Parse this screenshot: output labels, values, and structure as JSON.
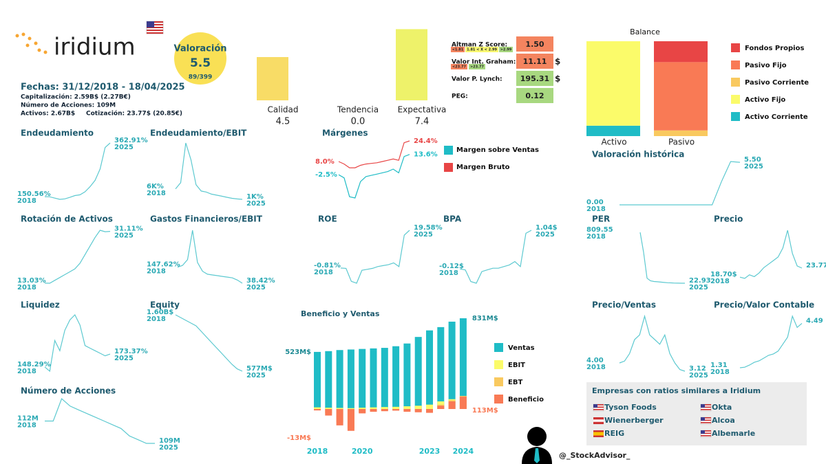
{
  "header": {
    "logo": "iridium",
    "valuation_title": "Valoración",
    "valuation": "5.5",
    "rank": "89/399",
    "dates": "Fechas: 31/12/2018 - 18/04/2025",
    "cap": "Capitalización: 2.59B$ (2.27B€)",
    "shares": "Número de Acciones: 109M",
    "assets": "Activos: 2.67B$",
    "price": "Cotización: 23.77$ (20.85€)"
  },
  "ratios": {
    "rows": [
      {
        "label": "Altman Z Score:",
        "value": "1.50",
        "color": "#f4845f"
      },
      {
        "label": "Valor Int. Graham:",
        "value": "11.11",
        "unit": "$",
        "color": "#f4845f"
      },
      {
        "label": "Valor P. Lynch:",
        "value": "195.31",
        "unit": "$",
        "color": "#a8d880"
      },
      {
        "label": "PEG:",
        "value": "0.12",
        "color": "#a8d880"
      }
    ],
    "altman_legend": [
      "<1.81",
      "1.81 < X < 2.99",
      ">2.99"
    ],
    "graham_legend": [
      "<23.77",
      ">23.77"
    ]
  },
  "similar": {
    "title": "Empresas con ratios similares a Iridium",
    "companies": [
      "Tyson Foods",
      "Okta",
      "Wienerberger",
      "Alcoa",
      "REIG",
      "Albemarle"
    ]
  },
  "footer": "@_StockAdvisor_",
  "chart_data": [
    {
      "type": "score",
      "categories": [
        "Calidad",
        "Tendencia",
        "Expectativa"
      ],
      "values": [
        4.5,
        0.0,
        7.4
      ],
      "value_labels": [
        "4.5",
        "0.0",
        "7.4"
      ],
      "colors": [
        "#f8dc66",
        "#f8dc66",
        "#eef26a"
      ]
    },
    {
      "type": "stack",
      "title": "Balance",
      "categories": [
        "Activo",
        "Pasivo"
      ],
      "series": [
        {
          "name": "Fondos Propios",
          "color": "#e84545",
          "values": [
            0,
            22
          ]
        },
        {
          "name": "Pasivo Fijo",
          "color": "#f97a55",
          "values": [
            0,
            72
          ]
        },
        {
          "name": "Pasivo Corriente",
          "color": "#f9c95f",
          "values": [
            0,
            6
          ]
        },
        {
          "name": "Activo Fijo",
          "color": "#fbfb6a",
          "values": [
            89,
            0
          ]
        },
        {
          "name": "Activo Corriente",
          "color": "#1fbcc6",
          "values": [
            11,
            0
          ]
        }
      ]
    },
    {
      "type": "overlap",
      "title": "Beneficio y Ventas",
      "categories": [
        "2018",
        null,
        null,
        null,
        "2020",
        null,
        null,
        null,
        null,
        null,
        "2023",
        null,
        null,
        "2024"
      ],
      "series": [
        {
          "name": "Ventas",
          "color": "#1fbcc6",
          "values": [
            523000000,
            530000000,
            540000000,
            545000000,
            550000000,
            555000000,
            560000000,
            575000000,
            600000000,
            660000000,
            720000000,
            750000000,
            800000000,
            831000000
          ],
          "value_labels": [
            "523M$",
            null,
            null,
            null,
            null,
            null,
            null,
            null,
            null,
            null,
            null,
            null,
            null,
            "831M$"
          ]
        },
        {
          "name": "EBIT",
          "color": "#fbfb6a",
          "values": [
            15000000,
            12000000,
            10000000,
            8000000,
            12000000,
            15000000,
            18000000,
            20000000,
            25000000,
            30000000,
            40000000,
            70000000,
            90000000,
            110000000
          ]
        },
        {
          "name": "EBT",
          "color": "#f9c95f",
          "values": [
            -5000000,
            -40000000,
            -120000000,
            -180000000,
            -30000000,
            -15000000,
            -10000000,
            -10000000,
            -15000000,
            -20000000,
            -25000000,
            40000000,
            80000000,
            120000000
          ]
        },
        {
          "name": "Beneficio",
          "color": "#f97a55",
          "values": [
            -13000000,
            -60000000,
            -150000000,
            -200000000,
            -40000000,
            -25000000,
            -20000000,
            -15000000,
            -25000000,
            -30000000,
            -35000000,
            30000000,
            70000000,
            113000000
          ],
          "value_labels": [
            "-13M$",
            null,
            null,
            null,
            null,
            null,
            null,
            null,
            null,
            null,
            null,
            null,
            null,
            "113M$"
          ]
        }
      ]
    },
    {
      "type": "line",
      "title": "Endeudamiento",
      "color": "#5cc9d0",
      "categories": [
        "2018",
        null,
        null,
        null,
        null,
        null,
        null,
        null,
        null,
        null,
        null,
        null,
        null,
        "2025"
      ],
      "values": [
        150.56,
        150,
        145,
        140,
        142,
        148,
        155,
        158,
        170,
        190,
        215,
        260,
        345,
        362.91
      ],
      "value_labels": [
        "150.56%",
        null,
        null,
        null,
        null,
        null,
        null,
        null,
        null,
        null,
        null,
        null,
        null,
        "362.91%"
      ]
    },
    {
      "type": "line",
      "title": "Endeudamiento/EBIT",
      "color": "#5cc9d0",
      "categories": [
        "2018",
        null,
        null,
        null,
        null,
        null,
        null,
        null,
        null,
        null,
        null,
        null,
        null,
        "2025"
      ],
      "values": [
        6000,
        9000,
        28000,
        20000,
        8000,
        5000,
        4500,
        3500,
        3000,
        2500,
        2000,
        1500,
        1200,
        1000
      ],
      "value_labels": [
        "6K%",
        null,
        null,
        null,
        null,
        null,
        null,
        null,
        null,
        null,
        null,
        null,
        null,
        "1K%"
      ]
    },
    {
      "type": "line",
      "title": "Márgenes",
      "categories": [
        null,
        null,
        null,
        null,
        null,
        null,
        null,
        null,
        null,
        null,
        null,
        null,
        null,
        null
      ],
      "series": [
        {
          "name": "Margen sobre Ventas",
          "color": "#1fbcc6",
          "values": [
            -2.5,
            -5,
            -20,
            -21,
            -8,
            -4,
            -3,
            -2,
            -1,
            0,
            2,
            -1,
            12,
            13.6
          ],
          "value_labels": [
            "-2.5%",
            null,
            null,
            null,
            null,
            null,
            null,
            null,
            null,
            null,
            null,
            null,
            null,
            "13.6%"
          ]
        },
        {
          "name": "Margen Bruto",
          "color": "#e84545",
          "values": [
            8.0,
            6,
            3,
            3,
            5,
            6,
            6.5,
            7,
            8,
            9,
            10,
            9,
            23,
            24.4
          ],
          "value_labels": [
            "8.0%",
            null,
            null,
            null,
            null,
            null,
            null,
            null,
            null,
            null,
            null,
            null,
            null,
            "24.4%"
          ]
        }
      ]
    },
    {
      "type": "line",
      "title": "Valoración histórica",
      "color": "#5cc9d0",
      "categories": [
        "2018",
        null,
        null,
        null,
        null,
        null,
        null,
        null,
        null,
        null,
        null,
        null,
        null,
        "2025"
      ],
      "values": [
        0.0,
        0,
        0,
        0,
        0,
        0,
        0,
        0,
        0,
        0,
        0,
        3,
        5.6,
        5.5
      ],
      "value_labels": [
        "0.00",
        null,
        null,
        null,
        null,
        null,
        null,
        null,
        null,
        null,
        null,
        null,
        null,
        "5.50"
      ]
    },
    {
      "type": "line",
      "title": "Rotación de Activos",
      "color": "#5cc9d0",
      "categories": [
        "2018",
        null,
        null,
        null,
        null,
        null,
        null,
        null,
        null,
        null,
        null,
        null,
        null,
        "2025"
      ],
      "values": [
        13.03,
        13,
        14,
        15,
        16,
        17,
        18,
        20,
        23,
        26,
        29,
        31.5,
        31,
        31.11
      ],
      "value_labels": [
        "13.03%",
        null,
        null,
        null,
        null,
        null,
        null,
        null,
        null,
        null,
        null,
        null,
        null,
        "31.11%"
      ]
    },
    {
      "type": "line",
      "title": "Gastos Financieros/EBIT",
      "color": "#5cc9d0",
      "categories": [
        "2018",
        null,
        null,
        null,
        null,
        null,
        null,
        null,
        null,
        null,
        null,
        null,
        null,
        "2025"
      ],
      "values": [
        147.62,
        160,
        200,
        400,
        180,
        120,
        100,
        95,
        90,
        85,
        80,
        75,
        60,
        38.42
      ],
      "value_labels": [
        "147.62%",
        null,
        null,
        null,
        null,
        null,
        null,
        null,
        null,
        null,
        null,
        null,
        null,
        "38.42%"
      ]
    },
    {
      "type": "line",
      "title": "ROE",
      "color": "#5cc9d0",
      "categories": [
        "2018",
        null,
        null,
        null,
        null,
        null,
        null,
        null,
        null,
        null,
        null,
        null,
        null,
        "2025"
      ],
      "values": [
        -0.81,
        -1,
        -8,
        -9,
        -2,
        -1.5,
        -1,
        0,
        0.5,
        1,
        2,
        0,
        17,
        19.58
      ],
      "value_labels": [
        "-0.81%",
        null,
        null,
        null,
        null,
        null,
        null,
        null,
        null,
        null,
        null,
        null,
        null,
        "19.58%"
      ]
    },
    {
      "type": "line",
      "title": "BPA",
      "color": "#5cc9d0",
      "categories": [
        "2018",
        null,
        null,
        null,
        null,
        null,
        null,
        null,
        null,
        null,
        null,
        null,
        null,
        "2025"
      ],
      "values": [
        -0.12,
        -0.15,
        -0.5,
        -0.55,
        -0.2,
        -0.15,
        -0.1,
        -0.1,
        -0.05,
        0,
        0.1,
        -0.05,
        0.95,
        1.04
      ],
      "value_labels": [
        "-0.12$",
        null,
        null,
        null,
        null,
        null,
        null,
        null,
        null,
        null,
        null,
        null,
        null,
        "1.04$"
      ]
    },
    {
      "type": "line",
      "title": "PER",
      "color": "#5cc9d0",
      "categories": [
        "2018",
        null,
        null,
        null,
        null,
        null,
        null,
        null,
        null,
        null,
        null,
        null,
        null,
        "2025"
      ],
      "values": [
        809.55,
        500,
        100,
        60,
        50,
        45,
        40,
        35,
        30,
        28,
        25,
        24,
        23,
        22.93
      ],
      "value_labels": [
        "809.55",
        null,
        null,
        null,
        null,
        null,
        null,
        null,
        null,
        null,
        null,
        null,
        null,
        "22.93"
      ]
    },
    {
      "type": "line",
      "title": "Precio",
      "color": "#5cc9d0",
      "categories": [
        "2018",
        null,
        null,
        null,
        null,
        null,
        null,
        null,
        null,
        null,
        null,
        null,
        null,
        null
      ],
      "values": [
        18.7,
        18,
        20,
        19,
        21,
        24,
        26,
        28,
        30,
        35,
        45,
        32,
        25,
        23.77
      ],
      "value_labels": [
        "18.70$",
        null,
        null,
        null,
        null,
        null,
        null,
        null,
        null,
        null,
        null,
        null,
        null,
        "23.77"
      ]
    },
    {
      "type": "line",
      "title": "Liquidez",
      "color": "#5cc9d0",
      "categories": [
        "2018",
        null,
        null,
        null,
        null,
        null,
        null,
        null,
        null,
        null,
        null,
        null,
        null,
        "2025"
      ],
      "values": [
        148.29,
        140,
        200,
        180,
        220,
        240,
        250,
        230,
        190,
        185,
        180,
        175,
        170,
        173.37
      ],
      "value_labels": [
        "148.29%",
        null,
        null,
        null,
        null,
        null,
        null,
        null,
        null,
        null,
        null,
        null,
        null,
        "173.37%"
      ]
    },
    {
      "type": "line",
      "title": "Equity",
      "color": "#5cc9d0",
      "categories": [
        "2018",
        null,
        null,
        null,
        null,
        null,
        null,
        null,
        null,
        null,
        null,
        null,
        null,
        "2025"
      ],
      "values": [
        1600000000,
        1550000000,
        1500000000,
        1450000000,
        1400000000,
        1300000000,
        1200000000,
        1100000000,
        1000000000,
        900000000,
        800000000,
        700000000,
        620000000,
        577000000
      ],
      "value_labels": [
        "1.60B$",
        null,
        null,
        null,
        null,
        null,
        null,
        null,
        null,
        null,
        null,
        null,
        null,
        "577M$"
      ]
    },
    {
      "type": "line",
      "title": "Precio/Ventas",
      "color": "#5cc9d0",
      "categories": [
        "2018",
        null,
        null,
        null,
        null,
        null,
        null,
        null,
        null,
        null,
        null,
        null,
        null,
        "2025"
      ],
      "values": [
        4.0,
        4.2,
        5,
        6.5,
        7,
        9,
        7,
        6.5,
        6,
        7,
        5,
        4,
        3.3,
        3.12
      ],
      "value_labels": [
        "4.00",
        null,
        null,
        null,
        null,
        null,
        null,
        null,
        null,
        null,
        null,
        null,
        null,
        "3.12"
      ]
    },
    {
      "type": "line",
      "title": "Precio/Valor Contable",
      "color": "#5cc9d0",
      "categories": [
        "2018",
        null,
        null,
        null,
        null,
        null,
        null,
        null,
        null,
        null,
        null,
        null,
        null,
        null
      ],
      "values": [
        1.31,
        1.35,
        1.5,
        1.7,
        1.8,
        2,
        2.2,
        2.3,
        2.5,
        3,
        3.5,
        5,
        4.2,
        4.49
      ],
      "value_labels": [
        "1.31",
        null,
        null,
        null,
        null,
        null,
        null,
        null,
        null,
        null,
        null,
        null,
        null,
        "4.49"
      ]
    },
    {
      "type": "line",
      "title": "Número de Acciones",
      "color": "#5cc9d0",
      "categories": [
        "2018",
        null,
        null,
        null,
        null,
        null,
        null,
        null,
        null,
        null,
        null,
        null,
        null,
        "2025"
      ],
      "values": [
        112000000,
        112000000,
        115000000,
        114000000,
        113500000,
        113000000,
        112500000,
        112000000,
        111500000,
        111000000,
        110000000,
        109500000,
        109000000,
        109000000
      ],
      "value_labels": [
        "112M",
        null,
        null,
        null,
        null,
        null,
        null,
        null,
        null,
        null,
        null,
        null,
        null,
        "109M"
      ]
    }
  ]
}
